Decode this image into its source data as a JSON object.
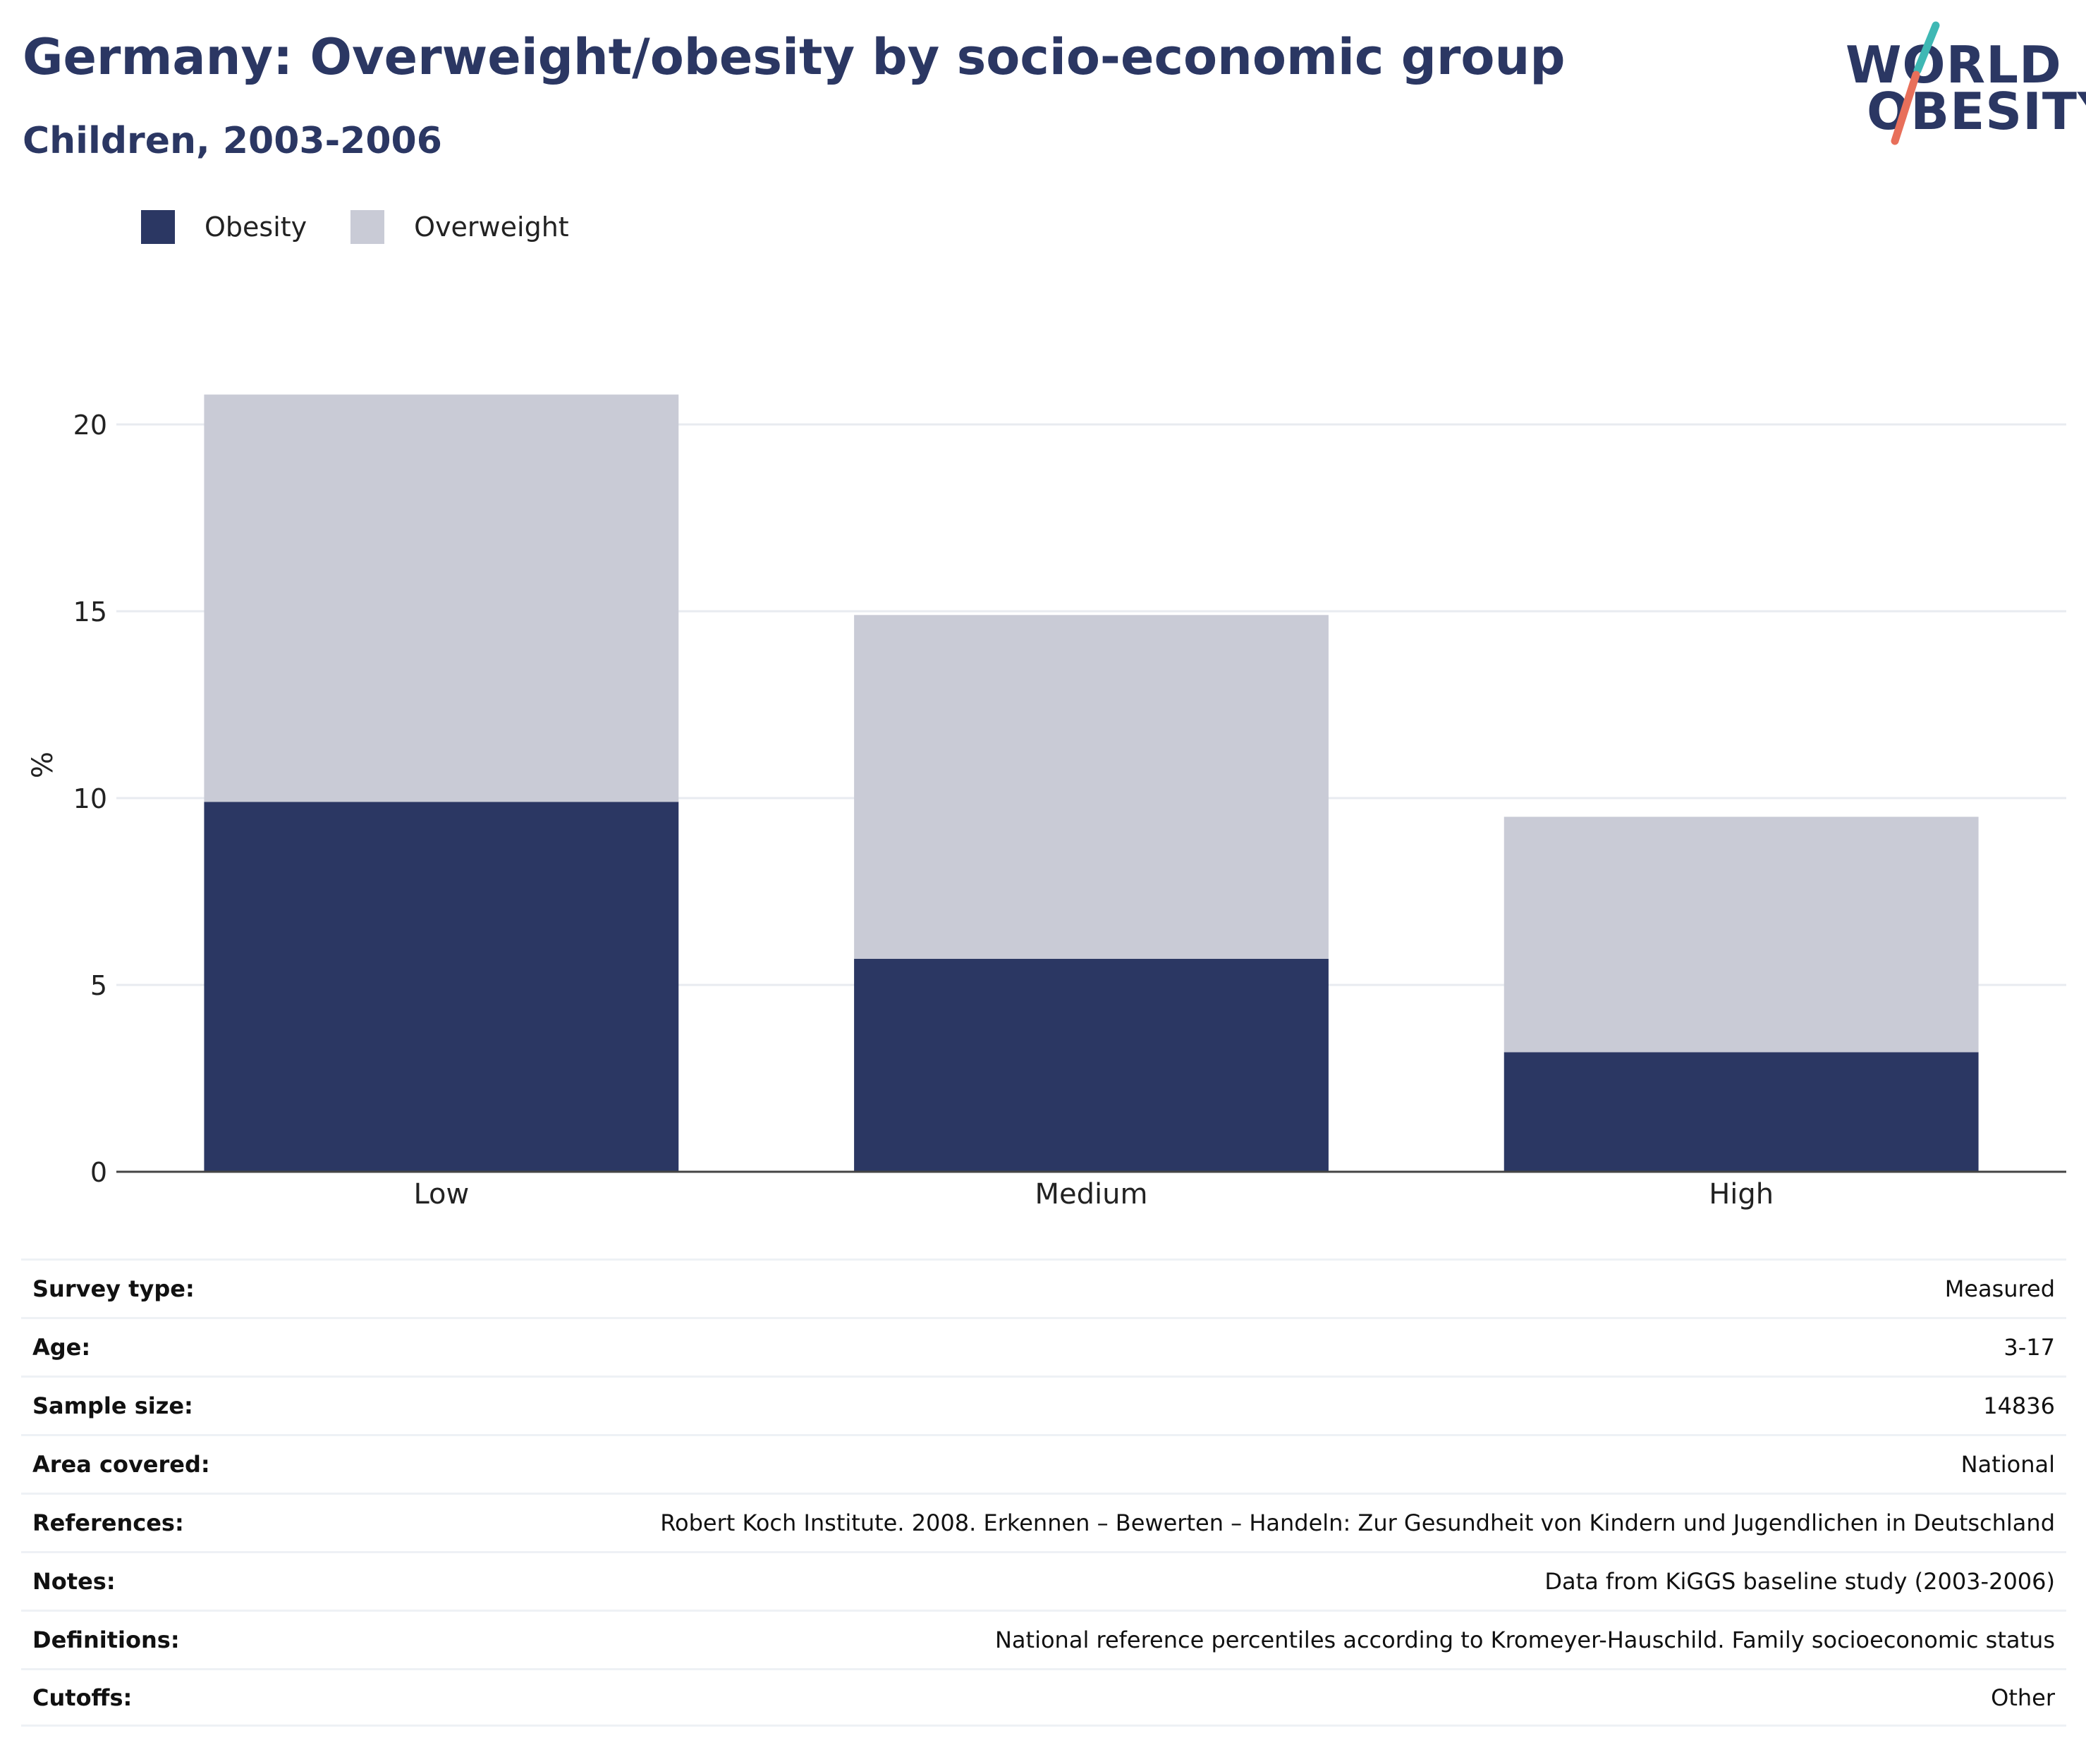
{
  "header": {
    "title": "Germany: Overweight/obesity by socio-economic group",
    "subtitle": "Children, 2003-2006"
  },
  "logo": {
    "line1": "WORLD",
    "line2": "OBESITY",
    "colors": {
      "text": "#2b3763",
      "accent_teal": "#3fb8b4",
      "accent_red": "#e86f5a"
    }
  },
  "chart_data": {
    "type": "bar",
    "stacked": true,
    "categories": [
      "Low",
      "Medium",
      "High"
    ],
    "series": [
      {
        "name": "Obesity",
        "values": [
          9.9,
          5.7,
          3.2
        ],
        "color": "#2b3763"
      },
      {
        "name": "Overweight",
        "values": [
          10.9,
          9.2,
          6.3
        ],
        "color": "#c9cbd6"
      }
    ],
    "ylabel": "%",
    "ylim": [
      0,
      22
    ],
    "yticks": [
      0,
      5,
      10,
      15,
      20
    ],
    "grid": true,
    "legend_position": "top-left"
  },
  "info": {
    "rows": [
      {
        "label": "Survey type:",
        "value": "Measured"
      },
      {
        "label": "Age:",
        "value": "3-17"
      },
      {
        "label": "Sample size:",
        "value": "14836"
      },
      {
        "label": "Area covered:",
        "value": "National"
      },
      {
        "label": "References:",
        "value": "Robert Koch Institute. 2008. Erkennen – Bewerten – Handeln: Zur Gesundheit von Kindern und Jugendlichen in Deutschland"
      },
      {
        "label": "Notes:",
        "value": "Data from KiGGS baseline study (2003-2006)"
      },
      {
        "label": "Definitions:",
        "value": "National reference percentiles according to Kromeyer-Hauschild. Family socioeconomic status"
      },
      {
        "label": "Cutoffs:",
        "value": "Other"
      }
    ]
  }
}
